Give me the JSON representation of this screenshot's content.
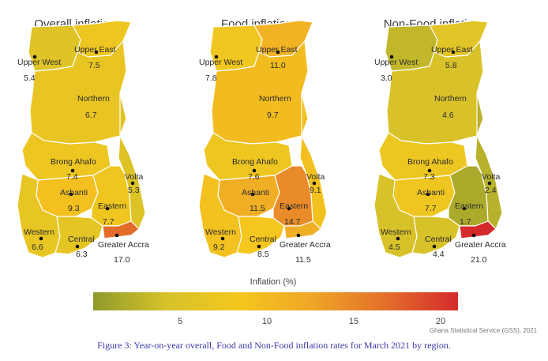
{
  "maps": [
    {
      "title": "Overall inflation",
      "regions": [
        {
          "name": "Upper West",
          "value": "5.4"
        },
        {
          "name": "Upper East",
          "value": "7.5"
        },
        {
          "name": "Northern",
          "value": "6.7"
        },
        {
          "name": "Brong Ahafo",
          "value": "7.4"
        },
        {
          "name": "Volta",
          "value": "5.3"
        },
        {
          "name": "Ashanti",
          "value": "9.3"
        },
        {
          "name": "Eastern",
          "value": "7.7"
        },
        {
          "name": "Western",
          "value": "6.6"
        },
        {
          "name": "Central",
          "value": "6.3"
        },
        {
          "name": "Greater Accra",
          "value": "17.0"
        }
      ]
    },
    {
      "title": "Food inflation",
      "regions": [
        {
          "name": "Upper West",
          "value": "7.8"
        },
        {
          "name": "Upper East",
          "value": "11.0"
        },
        {
          "name": "Northern",
          "value": "9.7"
        },
        {
          "name": "Brong Ahafo",
          "value": "7.6"
        },
        {
          "name": "Volta",
          "value": "9.1"
        },
        {
          "name": "Ashanti",
          "value": "11.5"
        },
        {
          "name": "Eastern",
          "value": "14.7"
        },
        {
          "name": "Western",
          "value": "9.2"
        },
        {
          "name": "Central",
          "value": "8.5"
        },
        {
          "name": "Greater Accra",
          "value": "11.5"
        }
      ]
    },
    {
      "title": "Non-Food inflation",
      "regions": [
        {
          "name": "Upper West",
          "value": "3.0"
        },
        {
          "name": "Upper East",
          "value": "5.8"
        },
        {
          "name": "Northern",
          "value": "4.6"
        },
        {
          "name": "Brong Ahafo",
          "value": "7.3"
        },
        {
          "name": "Volta",
          "value": "2.4"
        },
        {
          "name": "Ashanti",
          "value": "7.7"
        },
        {
          "name": "Eastern",
          "value": "1.7"
        },
        {
          "name": "Western",
          "value": "4.5"
        },
        {
          "name": "Central",
          "value": "4.4"
        },
        {
          "name": "Greater Accra",
          "value": "21.0"
        }
      ]
    }
  ],
  "legend": {
    "title": "Inflation (%)",
    "ticks": [
      5,
      10,
      15,
      20
    ],
    "range": [
      0,
      21
    ],
    "colors": [
      "#8f9a2c",
      "#d6c22a",
      "#f4c71e",
      "#efa526",
      "#e3702a",
      "#d42a2c"
    ]
  },
  "source": "Ghana Statistical Service (GSS), 2021",
  "caption": "Figure 3: Year-on-year overall, Food and Non-Food inflation rates for March 2021 by region."
}
